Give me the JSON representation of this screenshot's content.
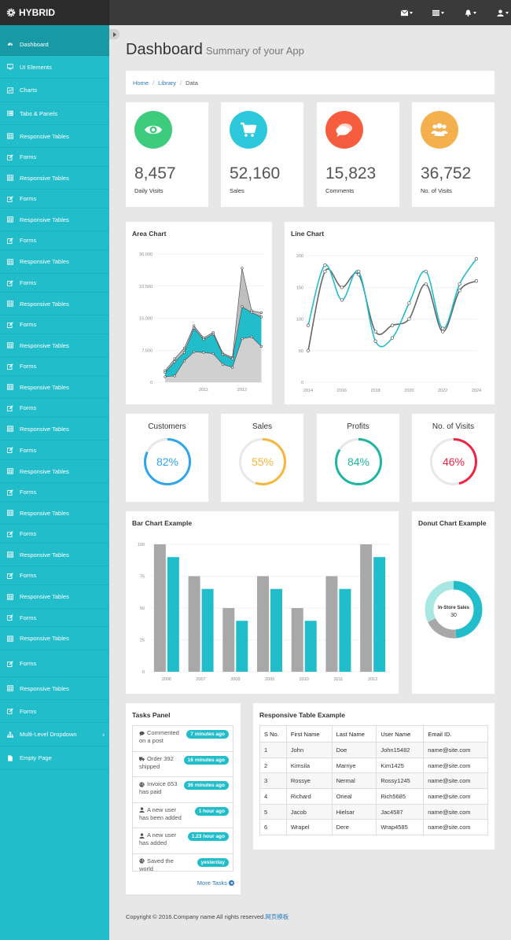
{
  "brand": {
    "name": "HYBRID"
  },
  "topbar": {
    "icons": [
      "envelope-icon",
      "tasks-icon",
      "bell-icon",
      "user-icon"
    ]
  },
  "sidebar": {
    "items": [
      {
        "label": "Dashboard",
        "icon": "dashboard-icon",
        "active": true
      },
      {
        "label": "UI Elements",
        "icon": "desktop-icon"
      },
      {
        "label": "Charts",
        "icon": "chart-icon"
      },
      {
        "label": "Tabs & Panels",
        "icon": "list-icon"
      },
      {
        "label": "Responsive Tables",
        "icon": "table-icon"
      },
      {
        "label": "Forms",
        "icon": "edit-icon"
      },
      {
        "label": "Responsive Tables",
        "icon": "table-icon"
      },
      {
        "label": "Forms",
        "icon": "edit-icon"
      },
      {
        "label": "Responsive Tables",
        "icon": "table-icon"
      },
      {
        "label": "Forms",
        "icon": "edit-icon"
      },
      {
        "label": "Responsive Tables",
        "icon": "table-icon"
      },
      {
        "label": "Forms",
        "icon": "edit-icon"
      },
      {
        "label": "Responsive Tables",
        "icon": "table-icon"
      },
      {
        "label": "Forms",
        "icon": "edit-icon"
      },
      {
        "label": "Responsive Tables",
        "icon": "table-icon"
      },
      {
        "label": "Forms",
        "icon": "edit-icon"
      },
      {
        "label": "Responsive Tables",
        "icon": "table-icon"
      },
      {
        "label": "Forms",
        "icon": "edit-icon"
      },
      {
        "label": "Responsive Tables",
        "icon": "table-icon"
      },
      {
        "label": "Forms",
        "icon": "edit-icon"
      },
      {
        "label": "Responsive Tables",
        "icon": "table-icon"
      },
      {
        "label": "Forms",
        "icon": "edit-icon"
      },
      {
        "label": "Responsive Tables",
        "icon": "table-icon"
      },
      {
        "label": "Forms",
        "icon": "edit-icon"
      },
      {
        "label": "Responsive Tables",
        "icon": "table-icon"
      },
      {
        "label": "Forms",
        "icon": "edit-icon"
      },
      {
        "label": "Responsive Tables",
        "icon": "table-icon"
      },
      {
        "label": "Forms",
        "icon": "edit-icon"
      },
      {
        "label": "Responsive Tables",
        "icon": "table-icon"
      },
      {
        "label": "Forms",
        "icon": "edit-icon"
      },
      {
        "label": "Responsive Tables",
        "icon": "table-icon"
      },
      {
        "label": "Forms",
        "icon": "edit-icon"
      },
      {
        "label": "Multi-Level Dropdown",
        "icon": "sitemap-icon",
        "arrow": "‹"
      },
      {
        "label": "Empty Page",
        "icon": "file-icon"
      }
    ]
  },
  "header": {
    "title": "Dashboard",
    "subtitle": "Summary of your App"
  },
  "breadcrumb": {
    "home": "Home",
    "library": "Library",
    "current": "Data",
    "separator": "/"
  },
  "stats": [
    {
      "value": "8,457",
      "label": "Daily Visits",
      "color": "#3dcc7e",
      "icon": "eye-icon"
    },
    {
      "value": "52,160",
      "label": "Sales",
      "color": "#2ec8dd",
      "icon": "cart-icon"
    },
    {
      "value": "15,823",
      "label": "Comments",
      "color": "#f65c3e",
      "icon": "comments-icon"
    },
    {
      "value": "36,752",
      "label": "No. of Visits",
      "color": "#f4b04c",
      "icon": "users-icon"
    }
  ],
  "chart_data": [
    {
      "type": "area",
      "title": "Area Chart",
      "x": [
        2010.0,
        2010.25,
        2010.5,
        2010.75,
        2011.0,
        2011.25,
        2011.5,
        2011.75,
        2012.0,
        2012.25,
        2012.5
      ],
      "x_ticks": [
        "2011",
        "2012"
      ],
      "y_ticks": [
        "0",
        "7,500",
        "15,000",
        "22,500",
        "30,000"
      ],
      "ylim": [
        0,
        30000
      ],
      "series": [
        {
          "values": [
            2700,
            5500,
            8000,
            13200,
            10400,
            11700,
            6800,
            5800,
            26700,
            16700,
            16300
          ],
          "color": "#bfbfbf"
        },
        {
          "values": [
            2300,
            4800,
            7000,
            12700,
            10000,
            11300,
            6500,
            5500,
            17700,
            16300,
            15300
          ],
          "color": "#22bdcb"
        },
        {
          "values": [
            1300,
            1500,
            5000,
            7100,
            7000,
            6700,
            4200,
            3500,
            10200,
            10600,
            8400
          ],
          "color": "#d0d0d0"
        }
      ]
    },
    {
      "type": "line",
      "title": "Line Chart",
      "x": [
        2014,
        2015,
        2016,
        2017,
        2018,
        2019,
        2020,
        2021,
        2022,
        2023,
        2024
      ],
      "x_ticks": [
        "2014",
        "2016",
        "2018",
        "2020",
        "2022",
        "2024"
      ],
      "y_ticks": [
        "0",
        "50",
        "100",
        "150",
        "200"
      ],
      "ylim": [
        0,
        200
      ],
      "series": [
        {
          "values": [
            90,
            185,
            130,
            175,
            65,
            70,
            125,
            175,
            85,
            155,
            195
          ],
          "color": "#22bdcb"
        },
        {
          "values": [
            50,
            175,
            150,
            170,
            80,
            90,
            100,
            155,
            80,
            145,
            160
          ],
          "color": "#666666"
        }
      ]
    },
    {
      "type": "bar",
      "title": "Bar Chart Example",
      "categories": [
        "2006",
        "2007",
        "2008",
        "2009",
        "2010",
        "2011",
        "2012"
      ],
      "y_ticks": [
        "0",
        "25",
        "50",
        "75",
        "100"
      ],
      "ylim": [
        0,
        100
      ],
      "series": [
        {
          "values": [
            100,
            75,
            50,
            75,
            50,
            75,
            100
          ],
          "color": "#a8a8a8"
        },
        {
          "values": [
            90,
            65,
            40,
            65,
            40,
            65,
            90
          ],
          "color": "#22bdcb"
        }
      ]
    },
    {
      "type": "pie",
      "title": "Donut Chart Example",
      "center_label": "In-Store Sales",
      "center_value": "30",
      "slices": [
        {
          "value": 30,
          "color": "#22bdcb"
        },
        {
          "value": 12,
          "color": "#a8a8a8"
        },
        {
          "value": 20,
          "color": "#a9e8e2"
        }
      ]
    }
  ],
  "pies": [
    {
      "title": "Customers",
      "display": "82%",
      "value": 82,
      "color": "#2fa5ec"
    },
    {
      "title": "Sales",
      "display": "55%",
      "value": 55,
      "color": "#f7b63d"
    },
    {
      "title": "Profits",
      "display": "84%",
      "value": 84,
      "color": "#1fb5a1"
    },
    {
      "title": "No. of Visits",
      "display": "46%",
      "value": 46,
      "color": "#ef2543"
    }
  ],
  "tasks": {
    "title": "Tasks Panel",
    "items": [
      {
        "text": "Commented on a post",
        "time": "7 minutes ago",
        "icon": "comment-icon"
      },
      {
        "text": "Order 392 shipped",
        "time": "16 minutes ago",
        "icon": "truck-icon"
      },
      {
        "text": "Invoice 653 has paid",
        "time": "36 minutes ago",
        "icon": "globe-icon"
      },
      {
        "text": "A new user has been added",
        "time": "1 hour ago",
        "icon": "user-icon"
      },
      {
        "text": "A new user has added",
        "time": "1.23 hour ago",
        "icon": "user-icon"
      },
      {
        "text": "Saved the world",
        "time": "yesterday",
        "icon": "globe-icon"
      }
    ],
    "more": "More Tasks"
  },
  "table": {
    "title": "Responsive Table Example",
    "headers": [
      "S No.",
      "First Name",
      "Last Name",
      "User Name",
      "Email ID."
    ],
    "rows": [
      [
        "1",
        "John",
        "Doe",
        "John15482",
        "name@site.com"
      ],
      [
        "2",
        "Kimsila",
        "Marriye",
        "Kim1425",
        "name@site.com"
      ],
      [
        "3",
        "Rossye",
        "Nermal",
        "Rossy1245",
        "name@site.com"
      ],
      [
        "4",
        "Richard",
        "Orieal",
        "Rich5685",
        "name@site.com"
      ],
      [
        "5",
        "Jacob",
        "Hielsar",
        "Jac4587",
        "name@site.com"
      ],
      [
        "6",
        "Wrapel",
        "Dere",
        "Wrap4585",
        "name@site.com"
      ]
    ]
  },
  "footer": {
    "text": "Copyright © 2016.Company name All rights reserved.",
    "link": "网页模板"
  }
}
